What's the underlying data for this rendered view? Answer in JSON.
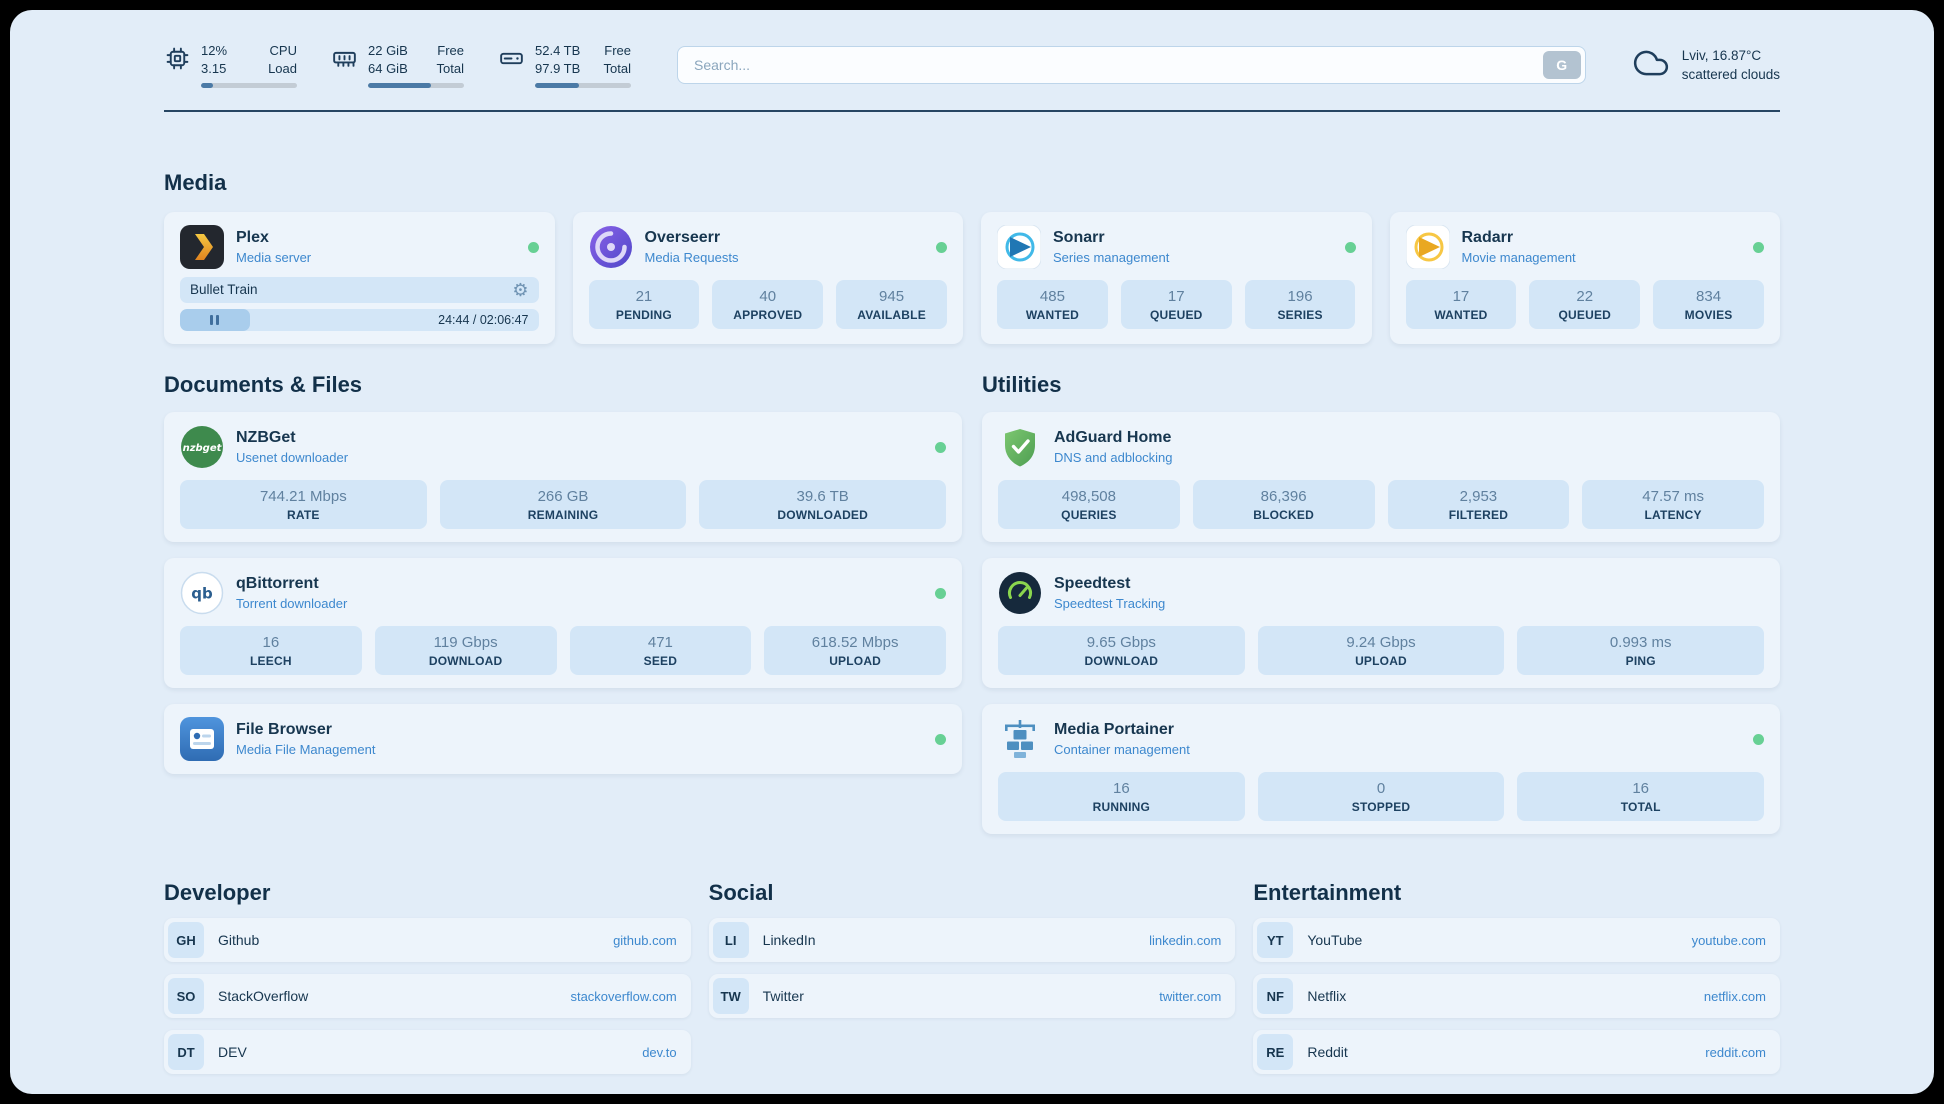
{
  "colors": {
    "page_bg": "#e2edf8",
    "card_bg": "#edf4fb",
    "tile_bg": "#d3e6f7",
    "text_dark": "#17364f",
    "text_muted": "#60819f",
    "link_blue": "#3d88ce",
    "status_green": "#67d094",
    "icon_navy": "#1f3e5c",
    "progress_track": "#c3ccd5",
    "progress_fill": "#4b7aa6"
  },
  "topbar": {
    "stats": [
      {
        "name": "cpu",
        "line1": "12%",
        "line2": "3.15",
        "label1": "CPU",
        "label2": "Load",
        "progress_pct": 12
      },
      {
        "name": "memory",
        "line1": "22 GiB",
        "line2": "64 GiB",
        "label1": "Free",
        "label2": "Total",
        "progress_pct": 66
      },
      {
        "name": "disk",
        "line1": "52.4 TB",
        "line2": "97.9 TB",
        "label1": "Free",
        "label2": "Total",
        "progress_pct": 46
      }
    ],
    "search": {
      "placeholder": "Search...",
      "button_label": "G"
    },
    "weather": {
      "location": "Lviv, 16.87°C",
      "condition": "scattered clouds"
    }
  },
  "sections": {
    "media": {
      "title": "Media",
      "plex": {
        "name": "Plex",
        "subtitle": "Media server",
        "player": {
          "track_title": "Bullet Train",
          "elapsed": "24:44",
          "separator": " / ",
          "total": "02:06:47",
          "progress_pct": 19.5
        }
      },
      "overseerr": {
        "name": "Overseerr",
        "subtitle": "Media Requests",
        "stats": [
          {
            "value": "21",
            "label": "PENDING"
          },
          {
            "value": "40",
            "label": "APPROVED"
          },
          {
            "value": "945",
            "label": "AVAILABLE"
          }
        ]
      },
      "sonarr": {
        "name": "Sonarr",
        "subtitle": "Series management",
        "stats": [
          {
            "value": "485",
            "label": "WANTED"
          },
          {
            "value": "17",
            "label": "QUEUED"
          },
          {
            "value": "196",
            "label": "SERIES"
          }
        ]
      },
      "radarr": {
        "name": "Radarr",
        "subtitle": "Movie management",
        "stats": [
          {
            "value": "17",
            "label": "WANTED"
          },
          {
            "value": "22",
            "label": "QUEUED"
          },
          {
            "value": "834",
            "label": "MOVIES"
          }
        ]
      }
    },
    "documents": {
      "title": "Documents & Files",
      "nzbget": {
        "name": "NZBGet",
        "subtitle": "Usenet downloader",
        "stats": [
          {
            "value": "744.21 Mbps",
            "label": "RATE"
          },
          {
            "value": "266 GB",
            "label": "REMAINING"
          },
          {
            "value": "39.6 TB",
            "label": "DOWNLOADED"
          }
        ]
      },
      "qbittorrent": {
        "name": "qBittorrent",
        "subtitle": "Torrent downloader",
        "stats": [
          {
            "value": "16",
            "label": "LEECH"
          },
          {
            "value": "119 Gbps",
            "label": "DOWNLOAD"
          },
          {
            "value": "471",
            "label": "SEED"
          },
          {
            "value": "618.52 Mbps",
            "label": "UPLOAD"
          }
        ]
      },
      "filebrowser": {
        "name": "File Browser",
        "subtitle": "Media File Management"
      }
    },
    "utilities": {
      "title": "Utilities",
      "adguard": {
        "name": "AdGuard Home",
        "subtitle": "DNS and adblocking",
        "stats": [
          {
            "value": "498,508",
            "label": "QUERIES"
          },
          {
            "value": "86,396",
            "label": "BLOCKED"
          },
          {
            "value": "2,953",
            "label": "FILTERED"
          },
          {
            "value": "47.57 ms",
            "label": "LATENCY"
          }
        ]
      },
      "speedtest": {
        "name": "Speedtest",
        "subtitle": "Speedtest Tracking",
        "stats": [
          {
            "value": "9.65 Gbps",
            "label": "DOWNLOAD"
          },
          {
            "value": "9.24 Gbps",
            "label": "UPLOAD"
          },
          {
            "value": "0.993 ms",
            "label": "PING"
          }
        ]
      },
      "portainer": {
        "name": "Media Portainer",
        "subtitle": "Container management",
        "stats": [
          {
            "value": "16",
            "label": "RUNNING"
          },
          {
            "value": "0",
            "label": "STOPPED"
          },
          {
            "value": "16",
            "label": "TOTAL"
          }
        ]
      }
    },
    "bookmarks": [
      {
        "title": "Developer",
        "items": [
          {
            "abbr": "GH",
            "name": "Github",
            "url": "github.com"
          },
          {
            "abbr": "SO",
            "name": "StackOverflow",
            "url": "stackoverflow.com"
          },
          {
            "abbr": "DT",
            "name": "DEV",
            "url": "dev.to"
          }
        ]
      },
      {
        "title": "Social",
        "items": [
          {
            "abbr": "LI",
            "name": "LinkedIn",
            "url": "linkedin.com"
          },
          {
            "abbr": "TW",
            "name": "Twitter",
            "url": "twitter.com"
          }
        ]
      },
      {
        "title": "Entertainment",
        "items": [
          {
            "abbr": "YT",
            "name": "YouTube",
            "url": "youtube.com"
          },
          {
            "abbr": "NF",
            "name": "Netflix",
            "url": "netflix.com"
          },
          {
            "abbr": "RE",
            "name": "Reddit",
            "url": "reddit.com"
          }
        ]
      }
    ]
  }
}
